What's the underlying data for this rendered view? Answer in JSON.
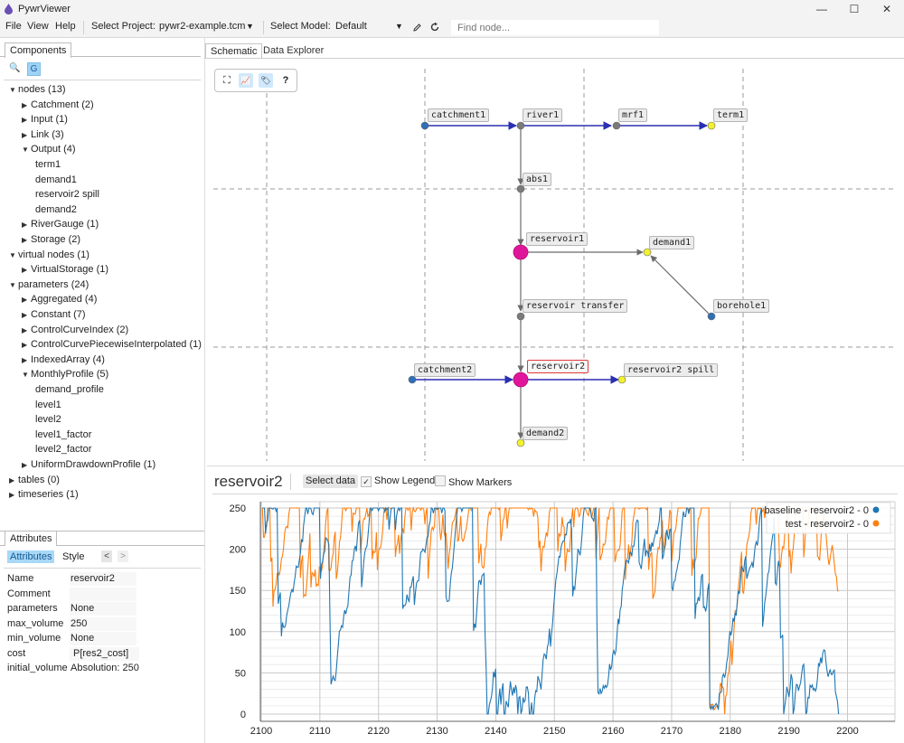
{
  "window": {
    "title": "PywrViewer",
    "minimize": "—",
    "maximize": "☐",
    "close": "✕"
  },
  "menu": {
    "file": "File",
    "view": "View",
    "help": "Help",
    "select_project_label": "Select Project:",
    "project_value": "pywr2-example.tcm",
    "select_model_label": "Select Model:",
    "model_value": "Default",
    "find_placeholder": "Find node..."
  },
  "left": {
    "components_tab": "Components",
    "search_icon": "🔍",
    "graph_icon": "G",
    "tree": [
      {
        "level": 0,
        "open": true,
        "label": "nodes (13)"
      },
      {
        "level": 1,
        "open": false,
        "label": "Catchment (2)"
      },
      {
        "level": 1,
        "open": false,
        "label": "Input (1)"
      },
      {
        "level": 1,
        "open": false,
        "label": "Link (3)"
      },
      {
        "level": 1,
        "open": true,
        "label": "Output (4)"
      },
      {
        "level": 2,
        "label": "term1"
      },
      {
        "level": 2,
        "label": "demand1"
      },
      {
        "level": 2,
        "label": "reservoir2 spill"
      },
      {
        "level": 2,
        "label": "demand2"
      },
      {
        "level": 1,
        "open": false,
        "label": "RiverGauge (1)"
      },
      {
        "level": 1,
        "open": false,
        "label": "Storage (2)"
      },
      {
        "level": 0,
        "open": true,
        "label": "virtual nodes (1)"
      },
      {
        "level": 1,
        "open": false,
        "label": "VirtualStorage (1)"
      },
      {
        "level": 0,
        "open": true,
        "label": "parameters (24)"
      },
      {
        "level": 1,
        "open": false,
        "label": "Aggregated (4)"
      },
      {
        "level": 1,
        "open": false,
        "label": "Constant (7)"
      },
      {
        "level": 1,
        "open": false,
        "label": "ControlCurveIndex (2)"
      },
      {
        "level": 1,
        "open": false,
        "label": "ControlCurvePiecewiseInterpolated (1)"
      },
      {
        "level": 1,
        "open": false,
        "label": "IndexedArray (4)"
      },
      {
        "level": 1,
        "open": true,
        "label": "MonthlyProfile (5)"
      },
      {
        "level": 2,
        "label": "demand_profile"
      },
      {
        "level": 2,
        "label": "level1"
      },
      {
        "level": 2,
        "label": "level2"
      },
      {
        "level": 2,
        "label": "level1_factor"
      },
      {
        "level": 2,
        "label": "level2_factor"
      },
      {
        "level": 1,
        "open": false,
        "label": "UniformDrawdownProfile (1)"
      },
      {
        "level": 0,
        "open": false,
        "label": "tables (0)"
      },
      {
        "level": 0,
        "open": false,
        "label": "timeseries (1)"
      }
    ],
    "attributes_tab": "Attributes",
    "attr_subtab": "Attributes",
    "style_subtab": "Style",
    "prev": "<",
    "next": ">",
    "attributes": [
      {
        "label": "Name",
        "value": "reservoir2"
      },
      {
        "label": "Comment",
        "value": ""
      },
      {
        "label": "parameters",
        "value": "None"
      },
      {
        "label": "max_volume",
        "value": "250"
      },
      {
        "label": "min_volume",
        "value": "None"
      },
      {
        "label": "cost",
        "value": "P[res2_cost]"
      },
      {
        "label": "initial_volume",
        "value": "Absolution: 250"
      }
    ]
  },
  "tabs": {
    "schematic": "Schematic",
    "data_explorer": "Data Explorer"
  },
  "toolbox": {
    "fit": "⛶",
    "chart": "📈",
    "tag": "🏷",
    "help": "?"
  },
  "schematic": {
    "nodes": [
      {
        "id": "catchment1",
        "label": "catchment1",
        "color": "#2f6fb5",
        "r": 4
      },
      {
        "id": "river1",
        "label": "river1",
        "color": "#7a7a7a",
        "r": 4
      },
      {
        "id": "mrf1",
        "label": "mrf1",
        "color": "#7a7a7a",
        "r": 4
      },
      {
        "id": "term1",
        "label": "term1",
        "color": "#f2f22e",
        "r": 4
      },
      {
        "id": "abs1",
        "label": "abs1",
        "color": "#7a7a7a",
        "r": 4
      },
      {
        "id": "reservoir1",
        "label": "reservoir1",
        "color": "#e0169a",
        "r": 8
      },
      {
        "id": "demand1",
        "label": "demand1",
        "color": "#f2f22e",
        "r": 4
      },
      {
        "id": "reservoir_transfer",
        "label": "reservoir transfer",
        "color": "#7a7a7a",
        "r": 4
      },
      {
        "id": "borehole1",
        "label": "borehole1",
        "color": "#2f6fb5",
        "r": 4
      },
      {
        "id": "catchment2",
        "label": "catchment2",
        "color": "#2f6fb5",
        "r": 4
      },
      {
        "id": "reservoir2",
        "label": "reservoir2",
        "color": "#e0169a",
        "r": 8
      },
      {
        "id": "reservoir2_spill",
        "label": "reservoir2 spill",
        "color": "#f2f22e",
        "r": 4
      },
      {
        "id": "demand2",
        "label": "demand2",
        "color": "#f2f22e",
        "r": 4
      }
    ],
    "selected": "reservoir2"
  },
  "chart": {
    "title": "reservoir2",
    "select_data": "Select data",
    "show_legend": "Show Legend",
    "show_markers": "Show Markers",
    "legend_checked": "✓"
  },
  "chart_data": {
    "type": "line",
    "x_range": [
      2100,
      2200
    ],
    "ylim": [
      0,
      250
    ],
    "x_ticks": [
      2100,
      2110,
      2120,
      2130,
      2140,
      2150,
      2160,
      2170,
      2180,
      2190,
      2200
    ],
    "y_ticks": [
      0,
      50,
      100,
      150,
      200,
      250
    ],
    "grid": true,
    "legend_position": "top-right",
    "series": [
      {
        "name": "baseline - reservoir2 - 0",
        "color": "#1f77b4"
      },
      {
        "name": "test - reservoir2 - 0",
        "color": "#ff7f0e"
      }
    ]
  }
}
